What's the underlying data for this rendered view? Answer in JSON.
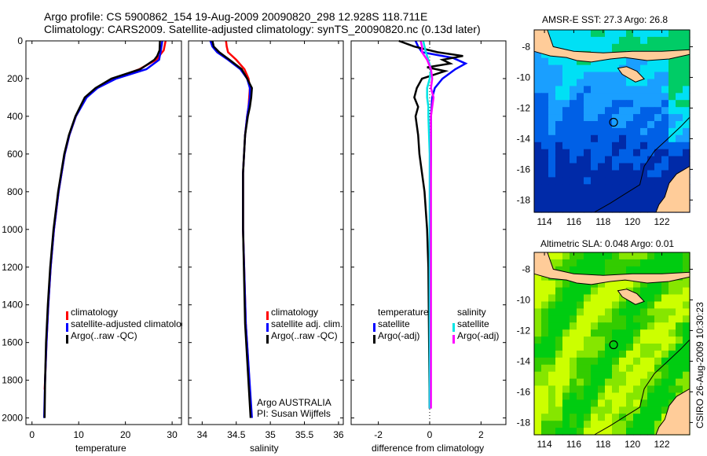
{
  "title": {
    "line1": "Argo profile: CS 5900862_154 19-Aug-2009 20090820_298 12.928S 118.711E",
    "line2": "Climatology: CARS2009. Satellite-adjusted climatology: synTS_20090820.nc (0.13d later)"
  },
  "side_stamp": "CSIRO 26-Aug-2009 10:30:23",
  "annotation": {
    "line1": "Argo AUSTRALIA",
    "line2": "PI: Susan Wijffels"
  },
  "colors": {
    "climatology": "#ff0000",
    "satellite": "#0000ff",
    "argo": "#000000",
    "sal_satellite": "#00e5e5",
    "sal_argo": "#ff00ff"
  },
  "chart_data": [
    {
      "type": "line",
      "id": "temperature",
      "xlabel": "temperature",
      "ylabel": "",
      "xlim": [
        -1.3,
        32
      ],
      "ylim": [
        0,
        2035
      ],
      "y_reversed": true,
      "xticks": [
        0,
        10,
        20,
        30
      ],
      "yticks": [
        0,
        200,
        400,
        600,
        800,
        1000,
        1200,
        1400,
        1600,
        1800,
        2000
      ],
      "legend": [
        "climatology",
        "satellite-adjusted climatology",
        "Argo(..raw -QC)"
      ],
      "series": [
        {
          "name": "climatology",
          "color": "#ff0000",
          "depth": [
            0,
            50,
            100,
            150,
            200,
            250,
            300,
            400,
            500,
            600,
            800,
            1000,
            1200,
            1400,
            1600,
            1800,
            1850
          ],
          "values": [
            28.6,
            28.2,
            26.6,
            23,
            17.5,
            13.8,
            11.6,
            9.4,
            8,
            7,
            5.7,
            4.7,
            4,
            3.5,
            3.1,
            2.8,
            2.7
          ]
        },
        {
          "name": "satellite-adjusted climatology",
          "color": "#0000ff",
          "depth": [
            0,
            50,
            100,
            150,
            200,
            250,
            300,
            400,
            500,
            600,
            800,
            1000,
            1200,
            1400,
            1600,
            1800,
            2000
          ],
          "values": [
            27.9,
            27.6,
            27.2,
            24.5,
            18,
            14,
            11.7,
            9.4,
            8,
            7,
            5.7,
            4.7,
            4,
            3.5,
            3.1,
            2.8,
            2.6
          ]
        },
        {
          "name": "Argo(..raw -QC)",
          "color": "#000000",
          "depth": [
            0,
            50,
            80,
            100,
            150,
            200,
            250,
            300,
            400,
            500,
            600,
            800,
            1000,
            1200,
            1400,
            1600,
            1800,
            2000
          ],
          "values": [
            27.4,
            27.3,
            26.8,
            26.2,
            23.2,
            17,
            13.6,
            11.3,
            9.3,
            7.9,
            6.9,
            5.6,
            4.6,
            3.9,
            3.4,
            3,
            2.8,
            2.7
          ]
        }
      ]
    },
    {
      "type": "line",
      "id": "salinity",
      "xlabel": "salinity",
      "ylabel": "",
      "xlim": [
        33.8,
        36.07
      ],
      "ylim": [
        0,
        2035
      ],
      "y_reversed": true,
      "xticks": [
        34,
        34.5,
        35,
        35.5,
        36
      ],
      "yticks": [
        0,
        200,
        400,
        600,
        800,
        1000,
        1200,
        1400,
        1600,
        1800,
        2000
      ],
      "legend": [
        "climatology",
        "satellite adj. clim.",
        "Argo(..raw -QC)"
      ],
      "series": [
        {
          "name": "climatology",
          "color": "#ff0000",
          "depth": [
            0,
            30,
            60,
            100,
            150,
            200,
            250,
            300,
            350,
            400,
            500,
            700,
            1000,
            1500,
            1850
          ],
          "values": [
            34.35,
            34.36,
            34.38,
            34.5,
            34.62,
            34.68,
            34.7,
            34.69,
            34.68,
            34.66,
            34.63,
            34.6,
            34.6,
            34.64,
            34.7
          ]
        },
        {
          "name": "satellite adj. clim.",
          "color": "#0000ff",
          "depth": [
            0,
            30,
            60,
            100,
            150,
            200,
            250,
            300,
            350,
            400,
            500,
            700,
            1000,
            1500,
            2000
          ],
          "values": [
            34.12,
            34.15,
            34.22,
            34.38,
            34.56,
            34.66,
            34.7,
            34.7,
            34.68,
            34.66,
            34.63,
            34.6,
            34.6,
            34.64,
            34.73
          ]
        },
        {
          "name": "Argo(..raw -QC)",
          "color": "#000000",
          "depth": [
            0,
            30,
            60,
            100,
            150,
            200,
            250,
            300,
            350,
            400,
            500,
            700,
            1000,
            1500,
            2000
          ],
          "values": [
            34.15,
            34.17,
            34.25,
            34.4,
            34.58,
            34.66,
            34.73,
            34.72,
            34.7,
            34.67,
            34.63,
            34.6,
            34.6,
            34.63,
            34.71
          ]
        }
      ]
    },
    {
      "type": "line",
      "id": "difference",
      "xlabel": "difference from climatology",
      "ylabel": "",
      "xlim": [
        -3.06,
        2.97
      ],
      "ylim": [
        0,
        2035
      ],
      "y_reversed": true,
      "xticks": [
        -2,
        0,
        2
      ],
      "yticks": [
        0,
        200,
        400,
        600,
        800,
        1000,
        1200,
        1400,
        1600,
        1800,
        2000
      ],
      "legend_headers": [
        "temperature",
        "salinity"
      ],
      "legend": [
        "satellite",
        "Argo(-adj)",
        "satellite",
        "Argo(-adj)"
      ],
      "series": [
        {
          "name": "temperature satellite",
          "color": "#0000ff",
          "depth": [
            0,
            30,
            60,
            90,
            120,
            150,
            200,
            250,
            300,
            400,
            600,
            1000,
            1500,
            1950
          ],
          "values": [
            -0.55,
            -0.45,
            -0.3,
            0.9,
            1.4,
            1.0,
            0.5,
            0.2,
            0.1,
            0.05,
            0.05,
            0.02,
            0.0,
            0.0
          ]
        },
        {
          "name": "temperature Argo(-adj)",
          "color": "#000000",
          "depth": [
            0,
            30,
            60,
            80,
            100,
            120,
            140,
            160,
            200,
            250,
            300,
            350,
            400,
            500,
            600,
            800,
            1000,
            1200,
            1950
          ],
          "values": [
            -1.2,
            -0.6,
            0.3,
            1.3,
            0.5,
            0.8,
            -0.1,
            0.6,
            -0.3,
            -0.5,
            -0.6,
            -0.45,
            -0.55,
            -0.45,
            -0.4,
            -0.2,
            -0.1,
            -0.05,
            0.0
          ]
        },
        {
          "name": "salinity satellite",
          "color": "#00e5e5",
          "depth": [
            0,
            30,
            60,
            100,
            150,
            200,
            250,
            300,
            350,
            400,
            600,
            1000,
            1500,
            1950
          ],
          "values": [
            -0.25,
            -0.2,
            -0.15,
            -0.05,
            0.05,
            0.0,
            -0.1,
            -0.1,
            -0.05,
            -0.05,
            0.0,
            0.0,
            0.0,
            0.0
          ]
        },
        {
          "name": "salinity Argo(-adj)",
          "color": "#ff00ff",
          "depth": [
            0,
            30,
            60,
            100,
            150,
            200,
            250,
            300,
            350,
            400,
            500,
            700,
            1000,
            1500,
            1950
          ],
          "values": [
            -0.35,
            -0.3,
            -0.3,
            -0.1,
            0.05,
            0.1,
            0.05,
            0.15,
            0.1,
            0.05,
            0.05,
            0.05,
            0.05,
            0.05,
            0.05
          ]
        }
      ]
    },
    {
      "type": "heatmap",
      "id": "sst-map",
      "title": "AMSR-E SST: 27.3 Argo: 26.8",
      "xlim": [
        113.3,
        123.9
      ],
      "ylim": [
        -18.8,
        -6.9
      ],
      "xticks": [
        114,
        116,
        118,
        120,
        122
      ],
      "yticks": [
        -8,
        -10,
        -12,
        -14,
        -16,
        -18
      ],
      "argo_position": {
        "lon": 118.711,
        "lat": -12.928
      }
    },
    {
      "type": "heatmap",
      "id": "sla-map",
      "title": "Altimetric SLA: 0.048 Argo: 0.01",
      "xlim": [
        113.3,
        123.9
      ],
      "ylim": [
        -18.8,
        -6.9
      ],
      "xticks": [
        114,
        116,
        118,
        120,
        122
      ],
      "yticks": [
        -8,
        -10,
        -12,
        -14,
        -16,
        -18
      ],
      "argo_position": {
        "lon": 118.711,
        "lat": -12.928
      }
    }
  ]
}
